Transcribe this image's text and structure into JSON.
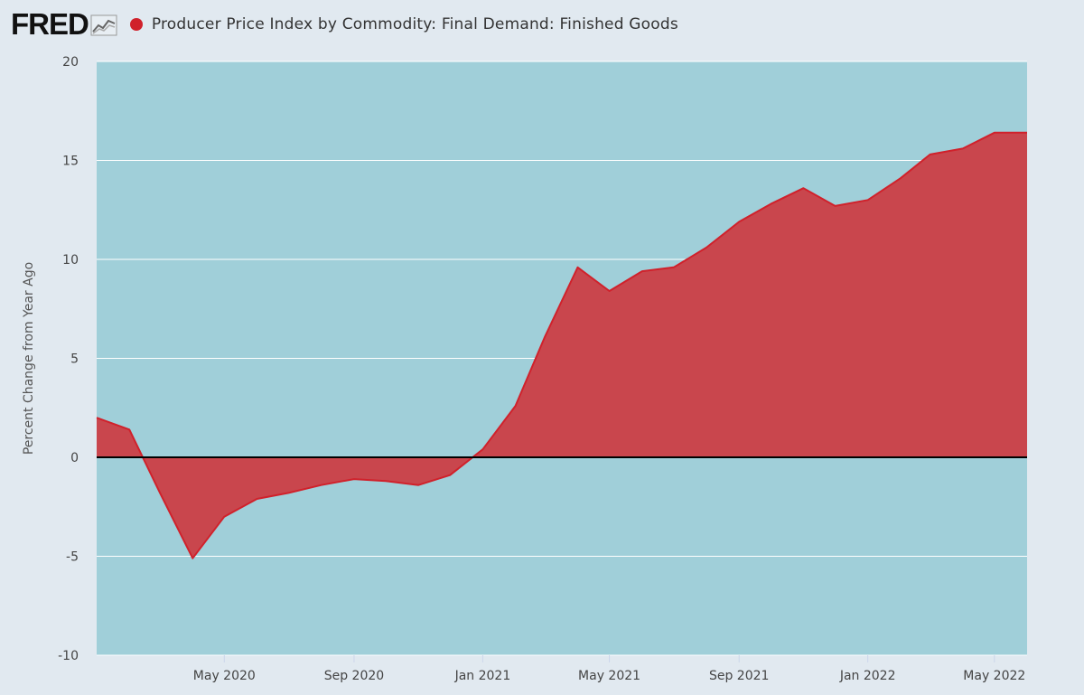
{
  "header": {
    "logo_text": "FRED",
    "series_title": "Producer Price Index by Commodity: Final Demand: Finished Goods"
  },
  "colors": {
    "page_background": "#e1e9f0",
    "plot_background": "#a0cfd9",
    "series_line": "#d0212b",
    "series_fill": "#c9464d",
    "zero_line": "#000000",
    "grid": "#ffffff"
  },
  "icons": [
    "line-graph-logo-icon",
    "legend-dot-icon"
  ],
  "chart_data": {
    "type": "area",
    "ylabel": "Percent Change from Year Ago",
    "xlabel": "",
    "ylim": [
      -10,
      20
    ],
    "yticks": [
      -10,
      -5,
      0,
      5,
      10,
      15,
      20
    ],
    "xlim": [
      "2020-01-01",
      "2022-06-01"
    ],
    "xticks": [
      {
        "date": "2020-05-01",
        "label": "May 2020"
      },
      {
        "date": "2020-09-01",
        "label": "Sep 2020"
      },
      {
        "date": "2021-01-01",
        "label": "Jan 2021"
      },
      {
        "date": "2021-05-01",
        "label": "May 2021"
      },
      {
        "date": "2021-09-01",
        "label": "Sep 2021"
      },
      {
        "date": "2022-01-01",
        "label": "Jan 2022"
      },
      {
        "date": "2022-05-01",
        "label": "May 2022"
      }
    ],
    "grid": true,
    "series": [
      {
        "name": "Producer Price Index by Commodity: Final Demand: Finished Goods",
        "x": [
          "2020-01-01",
          "2020-02-01",
          "2020-03-01",
          "2020-04-01",
          "2020-05-01",
          "2020-06-01",
          "2020-07-01",
          "2020-08-01",
          "2020-09-01",
          "2020-10-01",
          "2020-11-01",
          "2020-12-01",
          "2021-01-01",
          "2021-02-01",
          "2021-03-01",
          "2021-04-01",
          "2021-05-01",
          "2021-06-01",
          "2021-07-01",
          "2021-08-01",
          "2021-09-01",
          "2021-10-01",
          "2021-11-01",
          "2021-12-01",
          "2022-01-01",
          "2022-02-01",
          "2022-03-01",
          "2022-04-01",
          "2022-05-01",
          "2022-06-01"
        ],
        "values": [
          2.0,
          1.4,
          -1.8,
          -5.1,
          -3.0,
          -2.1,
          -1.8,
          -1.4,
          -1.1,
          -1.2,
          -1.4,
          -0.9,
          0.4,
          2.6,
          6.1,
          9.6,
          8.4,
          9.4,
          9.6,
          10.6,
          11.9,
          12.8,
          13.6,
          12.7,
          13.0,
          14.1,
          15.3,
          15.6,
          16.4,
          16.4
        ]
      }
    ]
  }
}
